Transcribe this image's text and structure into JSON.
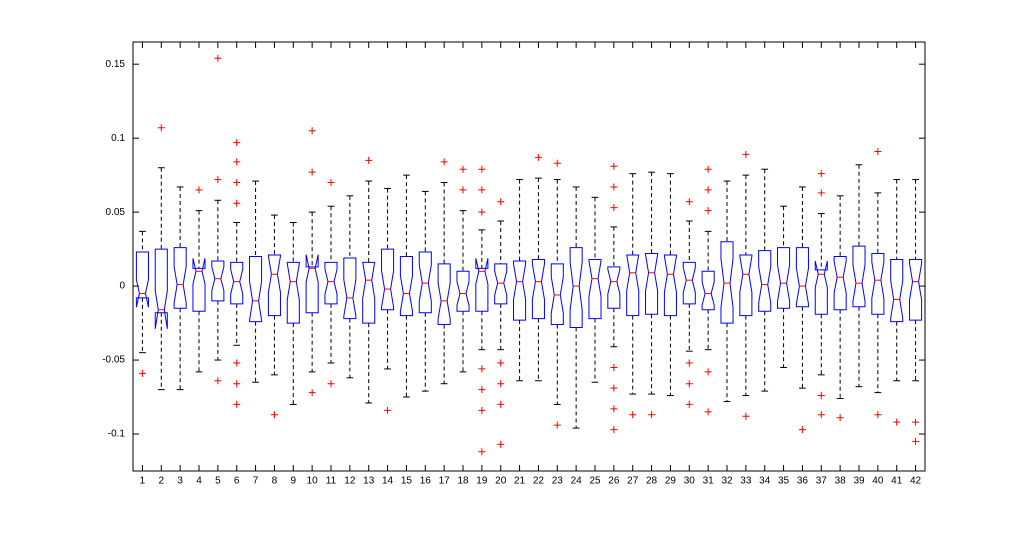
{
  "chart_data": {
    "type": "box",
    "categories": [
      1,
      2,
      3,
      4,
      5,
      6,
      7,
      8,
      9,
      10,
      11,
      12,
      13,
      14,
      15,
      16,
      17,
      18,
      19,
      20,
      21,
      22,
      23,
      24,
      25,
      26,
      27,
      28,
      29,
      30,
      31,
      32,
      33,
      34,
      35,
      36,
      37,
      38,
      39,
      40,
      41,
      42
    ],
    "boxes": [
      {
        "min": -0.045,
        "q1": -0.008,
        "median": -0.005,
        "q3": 0.023,
        "max": 0.037,
        "outliers": [
          -0.059
        ]
      },
      {
        "min": -0.07,
        "q1": -0.018,
        "median": -0.016,
        "q3": 0.025,
        "max": 0.08,
        "outliers": [
          0.107
        ]
      },
      {
        "min": -0.07,
        "q1": -0.015,
        "median": 0.001,
        "q3": 0.026,
        "max": 0.067,
        "outliers": []
      },
      {
        "min": -0.058,
        "q1": -0.017,
        "median": 0.01,
        "q3": 0.012,
        "max": 0.051,
        "outliers": [
          0.065
        ]
      },
      {
        "min": -0.05,
        "q1": -0.01,
        "median": 0.005,
        "q3": 0.017,
        "max": 0.058,
        "outliers": [
          0.154,
          0.072,
          -0.064
        ]
      },
      {
        "min": -0.04,
        "q1": -0.012,
        "median": 0.003,
        "q3": 0.016,
        "max": 0.043,
        "outliers": [
          0.097,
          0.084,
          0.07,
          0.056,
          -0.052,
          -0.066,
          -0.08
        ]
      },
      {
        "min": -0.065,
        "q1": -0.024,
        "median": -0.01,
        "q3": 0.02,
        "max": 0.071,
        "outliers": []
      },
      {
        "min": -0.06,
        "q1": -0.02,
        "median": 0.008,
        "q3": 0.021,
        "max": 0.048,
        "outliers": [
          -0.087
        ]
      },
      {
        "min": -0.08,
        "q1": -0.025,
        "median": 0.003,
        "q3": 0.016,
        "max": 0.043,
        "outliers": []
      },
      {
        "min": -0.058,
        "q1": -0.018,
        "median": 0.012,
        "q3": 0.013,
        "max": 0.05,
        "outliers": [
          0.105,
          0.077,
          -0.072
        ]
      },
      {
        "min": -0.052,
        "q1": -0.012,
        "median": 0.003,
        "q3": 0.016,
        "max": 0.054,
        "outliers": [
          0.07,
          -0.066
        ]
      },
      {
        "min": -0.062,
        "q1": -0.022,
        "median": -0.008,
        "q3": 0.019,
        "max": 0.061,
        "outliers": []
      },
      {
        "min": -0.079,
        "q1": -0.025,
        "median": 0.004,
        "q3": 0.016,
        "max": 0.071,
        "outliers": [
          0.085
        ]
      },
      {
        "min": -0.056,
        "q1": -0.016,
        "median": -0.002,
        "q3": 0.025,
        "max": 0.066,
        "outliers": [
          -0.084
        ]
      },
      {
        "min": -0.075,
        "q1": -0.02,
        "median": -0.005,
        "q3": 0.02,
        "max": 0.075,
        "outliers": []
      },
      {
        "min": -0.071,
        "q1": -0.018,
        "median": 0.002,
        "q3": 0.023,
        "max": 0.064,
        "outliers": []
      },
      {
        "min": -0.066,
        "q1": -0.026,
        "median": -0.01,
        "q3": 0.015,
        "max": 0.07,
        "outliers": [
          0.084
        ]
      },
      {
        "min": -0.058,
        "q1": -0.017,
        "median": -0.005,
        "q3": 0.01,
        "max": 0.051,
        "outliers": [
          0.079,
          0.065
        ]
      },
      {
        "min": -0.043,
        "q1": -0.017,
        "median": 0.01,
        "q3": 0.012,
        "max": 0.038,
        "outliers": [
          0.079,
          0.065,
          0.05,
          -0.056,
          -0.07,
          -0.084,
          -0.112
        ]
      },
      {
        "min": -0.043,
        "q1": -0.012,
        "median": 0.002,
        "q3": 0.015,
        "max": 0.044,
        "outliers": [
          0.057,
          -0.052,
          -0.066,
          -0.08,
          -0.107
        ]
      },
      {
        "min": -0.064,
        "q1": -0.023,
        "median": 0.003,
        "q3": 0.017,
        "max": 0.072,
        "outliers": []
      },
      {
        "min": -0.064,
        "q1": -0.022,
        "median": 0.003,
        "q3": 0.018,
        "max": 0.073,
        "outliers": [
          0.087
        ]
      },
      {
        "min": -0.08,
        "q1": -0.026,
        "median": -0.006,
        "q3": 0.015,
        "max": 0.072,
        "outliers": [
          0.083,
          -0.094
        ]
      },
      {
        "min": -0.096,
        "q1": -0.028,
        "median": 0.0,
        "q3": 0.026,
        "max": 0.067,
        "outliers": []
      },
      {
        "min": -0.065,
        "q1": -0.022,
        "median": 0.005,
        "q3": 0.018,
        "max": 0.06,
        "outliers": []
      },
      {
        "min": -0.041,
        "q1": -0.015,
        "median": 0.003,
        "q3": 0.013,
        "max": 0.04,
        "outliers": [
          0.081,
          0.067,
          0.053,
          -0.055,
          -0.069,
          -0.083,
          -0.097
        ]
      },
      {
        "min": -0.073,
        "q1": -0.02,
        "median": 0.009,
        "q3": 0.021,
        "max": 0.076,
        "outliers": [
          -0.087
        ]
      },
      {
        "min": -0.073,
        "q1": -0.019,
        "median": 0.009,
        "q3": 0.022,
        "max": 0.077,
        "outliers": [
          -0.087
        ]
      },
      {
        "min": -0.074,
        "q1": -0.02,
        "median": 0.008,
        "q3": 0.021,
        "max": 0.076,
        "outliers": []
      },
      {
        "min": -0.044,
        "q1": -0.012,
        "median": 0.004,
        "q3": 0.016,
        "max": 0.044,
        "outliers": [
          0.057,
          -0.052,
          -0.066,
          -0.08
        ]
      },
      {
        "min": -0.043,
        "q1": -0.016,
        "median": -0.005,
        "q3": 0.01,
        "max": 0.037,
        "outliers": [
          0.079,
          0.065,
          0.051,
          -0.058,
          -0.085
        ]
      },
      {
        "min": -0.078,
        "q1": -0.025,
        "median": 0.002,
        "q3": 0.03,
        "max": 0.071,
        "outliers": []
      },
      {
        "min": -0.074,
        "q1": -0.02,
        "median": 0.008,
        "q3": 0.021,
        "max": 0.075,
        "outliers": [
          0.089,
          -0.088
        ]
      },
      {
        "min": -0.071,
        "q1": -0.017,
        "median": 0.001,
        "q3": 0.024,
        "max": 0.079,
        "outliers": []
      },
      {
        "min": -0.055,
        "q1": -0.015,
        "median": 0.002,
        "q3": 0.026,
        "max": 0.054,
        "outliers": []
      },
      {
        "min": -0.069,
        "q1": -0.014,
        "median": 0.0,
        "q3": 0.026,
        "max": 0.067,
        "outliers": [
          -0.097
        ]
      },
      {
        "min": -0.06,
        "q1": -0.019,
        "median": 0.008,
        "q3": 0.011,
        "max": 0.049,
        "outliers": [
          0.076,
          0.063,
          -0.074,
          -0.087
        ]
      },
      {
        "min": -0.076,
        "q1": -0.016,
        "median": 0.006,
        "q3": 0.02,
        "max": 0.061,
        "outliers": [
          -0.089
        ]
      },
      {
        "min": -0.068,
        "q1": -0.014,
        "median": 0.002,
        "q3": 0.027,
        "max": 0.082,
        "outliers": []
      },
      {
        "min": -0.072,
        "q1": -0.019,
        "median": 0.004,
        "q3": 0.022,
        "max": 0.063,
        "outliers": [
          0.091,
          -0.087
        ]
      },
      {
        "min": -0.064,
        "q1": -0.024,
        "median": -0.009,
        "q3": 0.018,
        "max": 0.072,
        "outliers": [
          -0.092
        ]
      },
      {
        "min": -0.064,
        "q1": -0.023,
        "median": 0.003,
        "q3": 0.018,
        "max": 0.072,
        "outliers": [
          -0.092,
          -0.105
        ]
      }
    ],
    "ylim": [
      -0.125,
      0.165
    ],
    "yticks": [
      -0.1,
      -0.05,
      0,
      0.05,
      0.1,
      0.15
    ],
    "box_color": "#0000ff",
    "median_color": "#ff0000",
    "whisker_color": "#000000",
    "outlier_color": "#ff0000"
  }
}
